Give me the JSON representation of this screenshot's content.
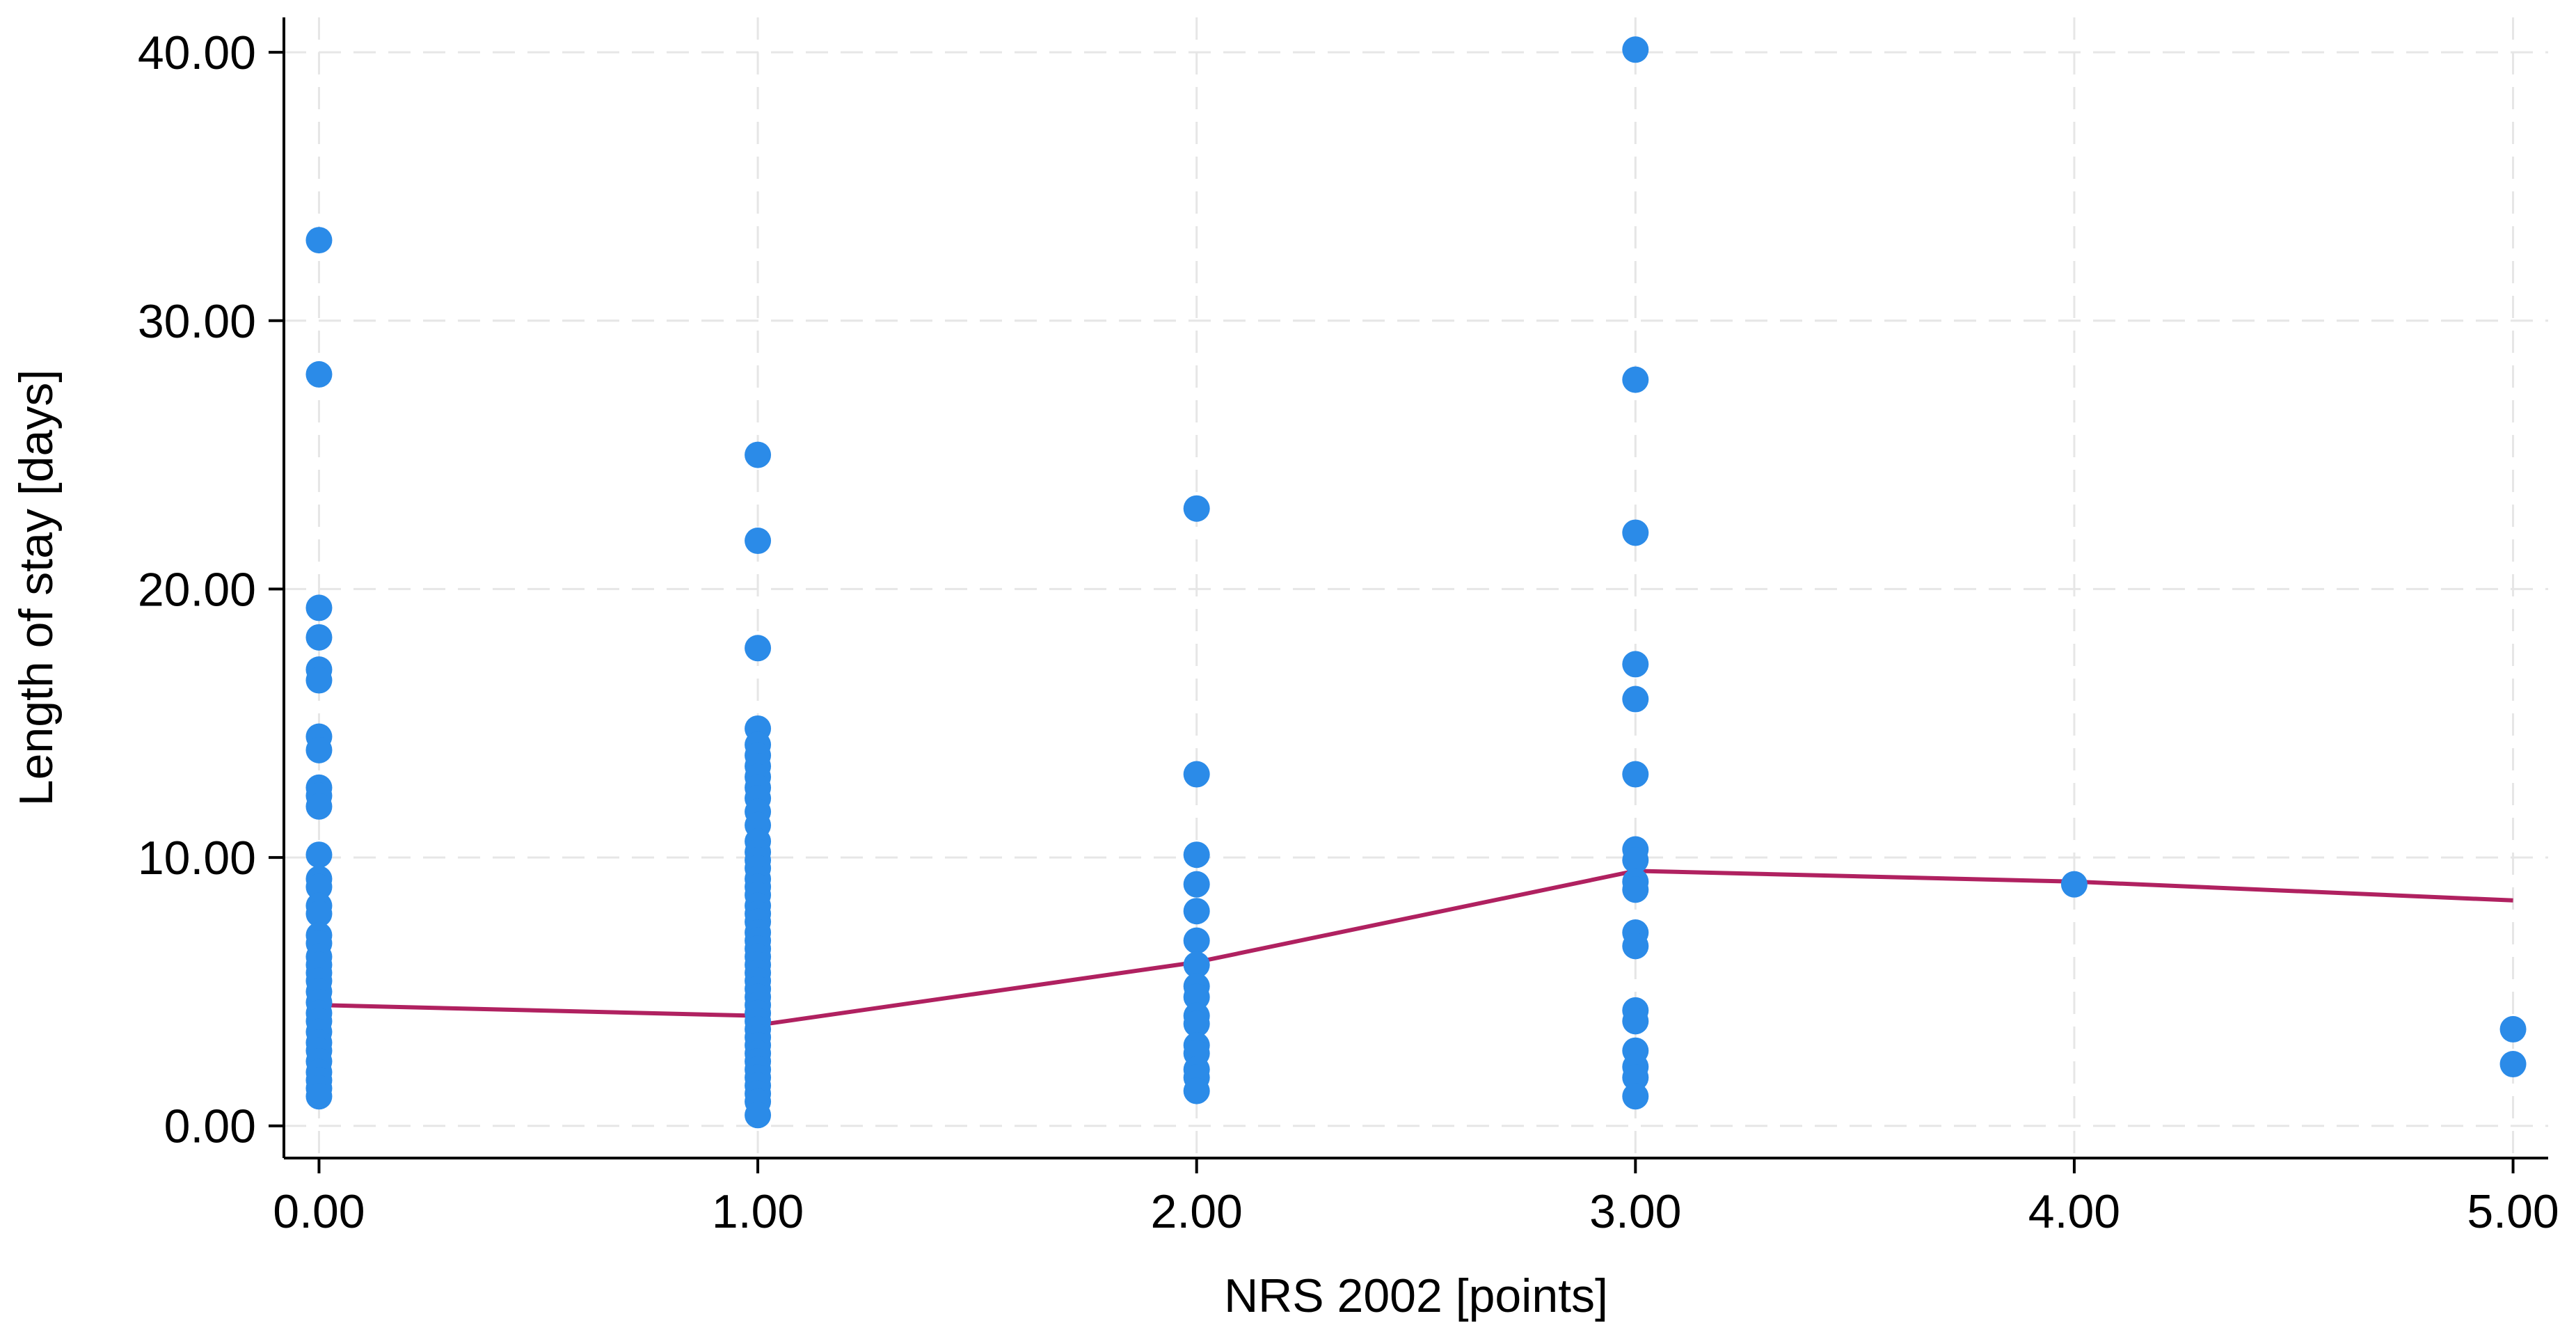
{
  "chart_data": {
    "type": "scatter",
    "xlabel": "NRS 2002 [points]",
    "ylabel": "Length of stay [days]",
    "xlim": [
      -0.08,
      5.08
    ],
    "ylim": [
      -1.2,
      41.3
    ],
    "x_ticks": [
      0,
      1,
      2,
      3,
      4,
      5
    ],
    "x_tick_labels": [
      "0.00",
      "1.00",
      "2.00",
      "3.00",
      "4.00",
      "5.00"
    ],
    "y_ticks": [
      0,
      10,
      20,
      30,
      40
    ],
    "y_tick_labels": [
      "0.00",
      "10.00",
      "20.00",
      "30.00",
      "40.00"
    ],
    "grid": true,
    "legend": "none",
    "colors": {
      "points": "#2b8be8",
      "line": "#b02160",
      "grid": "#e6e6e6"
    },
    "series": [
      {
        "type": "scatter",
        "points": [
          [
            0,
            33.0
          ],
          [
            0,
            28.0
          ],
          [
            0,
            19.3
          ],
          [
            0,
            18.2
          ],
          [
            0,
            17.0
          ],
          [
            0,
            16.6
          ],
          [
            0,
            14.5
          ],
          [
            0,
            14.0
          ],
          [
            0,
            12.6
          ],
          [
            0,
            12.3
          ],
          [
            0,
            11.9
          ],
          [
            0,
            10.1
          ],
          [
            0,
            9.2
          ],
          [
            0,
            8.9
          ],
          [
            0,
            8.2
          ],
          [
            0,
            7.9
          ],
          [
            0,
            7.1
          ],
          [
            0,
            6.8
          ],
          [
            0,
            6.3
          ],
          [
            0,
            6.0
          ],
          [
            0,
            5.7
          ],
          [
            0,
            5.4
          ],
          [
            0,
            5.0
          ],
          [
            0,
            4.6
          ],
          [
            0,
            4.2
          ],
          [
            0,
            3.9
          ],
          [
            0,
            3.5
          ],
          [
            0,
            3.1
          ],
          [
            0,
            2.8
          ],
          [
            0,
            2.4
          ],
          [
            0,
            2.0
          ],
          [
            0,
            1.7
          ],
          [
            0,
            1.4
          ],
          [
            0,
            1.1
          ],
          [
            1,
            25.0
          ],
          [
            1,
            21.8
          ],
          [
            1,
            17.8
          ],
          [
            1,
            14.8
          ],
          [
            1,
            14.2
          ],
          [
            1,
            13.8
          ],
          [
            1,
            13.4
          ],
          [
            1,
            13.0
          ],
          [
            1,
            12.6
          ],
          [
            1,
            12.2
          ],
          [
            1,
            11.7
          ],
          [
            1,
            11.2
          ],
          [
            1,
            10.6
          ],
          [
            1,
            10.2
          ],
          [
            1,
            9.9
          ],
          [
            1,
            9.6
          ],
          [
            1,
            9.2
          ],
          [
            1,
            8.9
          ],
          [
            1,
            8.6
          ],
          [
            1,
            8.2
          ],
          [
            1,
            7.9
          ],
          [
            1,
            7.6
          ],
          [
            1,
            7.2
          ],
          [
            1,
            6.9
          ],
          [
            1,
            6.6
          ],
          [
            1,
            6.3
          ],
          [
            1,
            6.0
          ],
          [
            1,
            5.7
          ],
          [
            1,
            5.4
          ],
          [
            1,
            5.1
          ],
          [
            1,
            4.8
          ],
          [
            1,
            4.5
          ],
          [
            1,
            4.2
          ],
          [
            1,
            3.9
          ],
          [
            1,
            3.6
          ],
          [
            1,
            3.3
          ],
          [
            1,
            3.0
          ],
          [
            1,
            2.7
          ],
          [
            1,
            2.4
          ],
          [
            1,
            2.1
          ],
          [
            1,
            1.8
          ],
          [
            1,
            1.5
          ],
          [
            1,
            1.2
          ],
          [
            1,
            0.9
          ],
          [
            1,
            0.4
          ],
          [
            2,
            23.0
          ],
          [
            2,
            13.1
          ],
          [
            2,
            10.1
          ],
          [
            2,
            9.0
          ],
          [
            2,
            8.0
          ],
          [
            2,
            6.9
          ],
          [
            2,
            6.0
          ],
          [
            2,
            5.2
          ],
          [
            2,
            4.8
          ],
          [
            2,
            4.1
          ],
          [
            2,
            3.8
          ],
          [
            2,
            3.0
          ],
          [
            2,
            2.7
          ],
          [
            2,
            2.1
          ],
          [
            2,
            1.8
          ],
          [
            2,
            1.3
          ],
          [
            3,
            40.1
          ],
          [
            3,
            27.8
          ],
          [
            3,
            22.1
          ],
          [
            3,
            17.2
          ],
          [
            3,
            15.9
          ],
          [
            3,
            13.1
          ],
          [
            3,
            10.3
          ],
          [
            3,
            9.9
          ],
          [
            3,
            9.1
          ],
          [
            3,
            8.8
          ],
          [
            3,
            7.2
          ],
          [
            3,
            6.7
          ],
          [
            3,
            4.3
          ],
          [
            3,
            3.9
          ],
          [
            3,
            2.8
          ],
          [
            3,
            2.2
          ],
          [
            3,
            1.8
          ],
          [
            3,
            1.1
          ],
          [
            4,
            9.0
          ],
          [
            5,
            3.6
          ],
          [
            5,
            2.3
          ]
        ]
      },
      {
        "type": "line",
        "points": [
          [
            0,
            4.5
          ],
          [
            1,
            4.1
          ],
          [
            1.02,
            3.8
          ],
          [
            2,
            6.1
          ],
          [
            3,
            9.5
          ],
          [
            4,
            9.1
          ],
          [
            5,
            8.4
          ]
        ]
      }
    ]
  }
}
